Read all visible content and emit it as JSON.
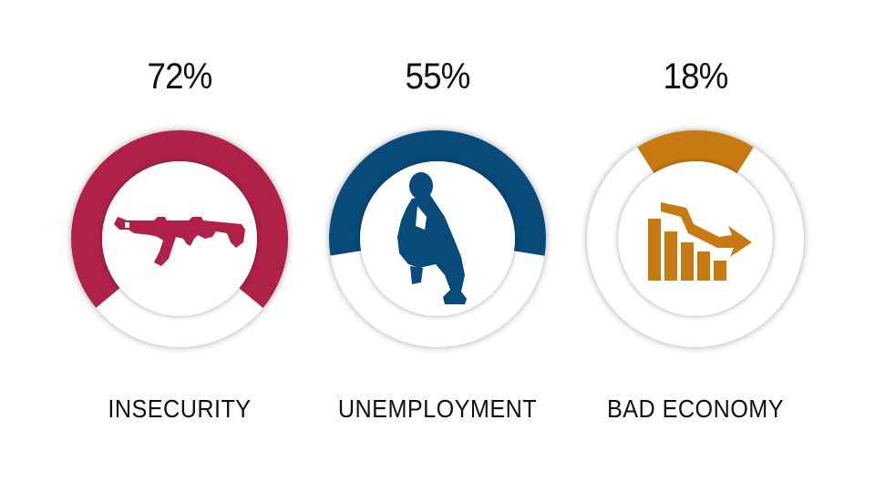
{
  "chart_data": {
    "type": "donut",
    "items": [
      {
        "label": "INSECURITY",
        "value_text": "72%",
        "value": 72,
        "color": "#b0214a",
        "icon": "assault-rifle-icon"
      },
      {
        "label": "UNEMPLOYMENT",
        "value_text": "55%",
        "value": 55,
        "color": "#084a7a",
        "icon": "crouching-man-icon"
      },
      {
        "label": "BAD ECONOMY",
        "value_text": "18%",
        "value": 18,
        "color": "#c77a12",
        "icon": "declining-bar-chart-icon"
      }
    ],
    "track_color": "#ffffff"
  }
}
